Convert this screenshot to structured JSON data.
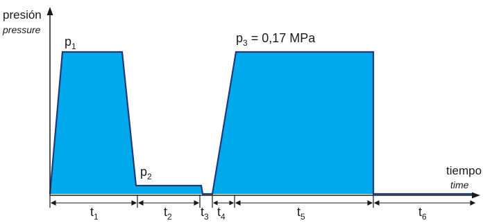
{
  "y_axis": {
    "label": "presión",
    "label_en": "pressure"
  },
  "x_axis": {
    "label": "tiempo",
    "label_en": "time"
  },
  "pressure_labels": {
    "p1": {
      "base": "p",
      "sub": "1"
    },
    "p2": {
      "base": "p",
      "sub": "2"
    },
    "p3": {
      "base": "p",
      "sub": "3",
      "suffix": " = 0,17 MPa"
    }
  },
  "intervals": [
    {
      "base": "t",
      "sub": "1"
    },
    {
      "base": "t",
      "sub": "2"
    },
    {
      "base": "t",
      "sub": "3"
    },
    {
      "base": "t",
      "sub": "4"
    },
    {
      "base": "t",
      "sub": "5"
    },
    {
      "base": "t",
      "sub": "6"
    }
  ],
  "colors": {
    "fill": "#00a9ec",
    "stroke": "#1f3a78",
    "axis": "#1a1a1a"
  }
}
